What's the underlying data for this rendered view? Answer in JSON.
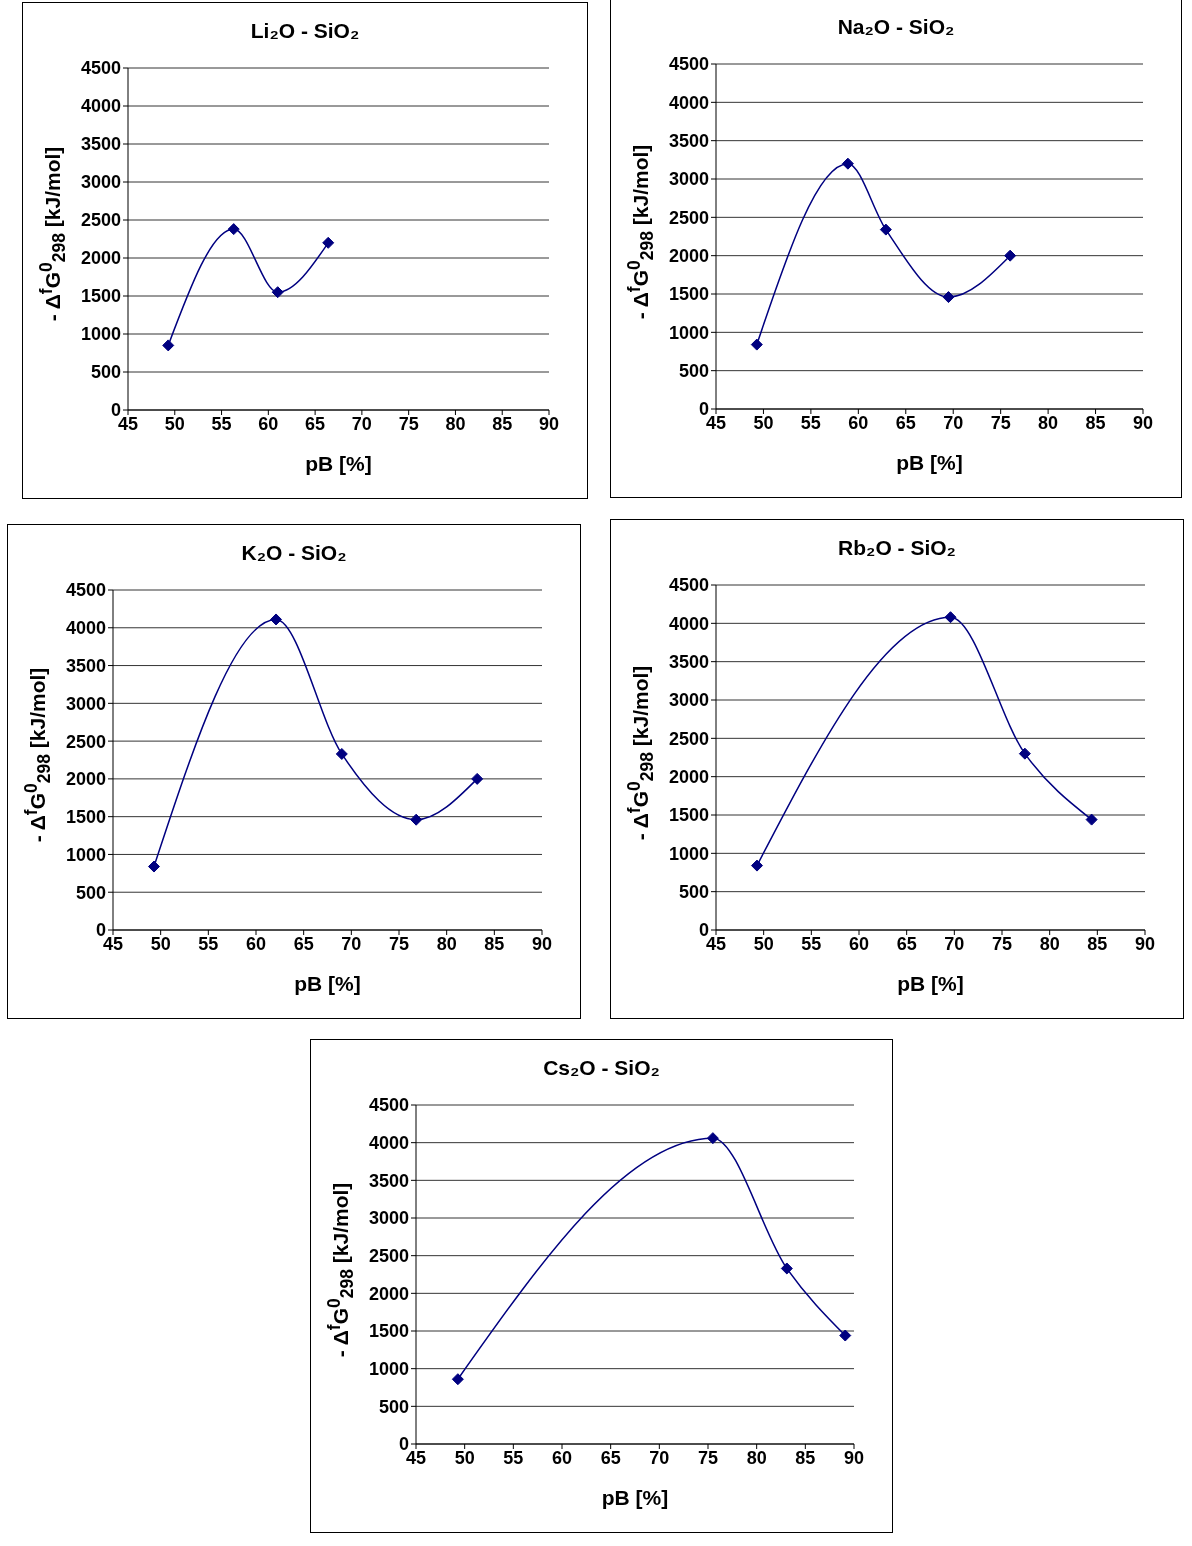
{
  "chart_data": [
    {
      "type": "line",
      "title": "Li₂O - SiO₂",
      "xlabel": "pB [%]",
      "ylabel": "- Δ$^{f}$G$^{0}$$_{298}$ [kJ/mol]",
      "x": [
        49.3,
        56.3,
        61,
        66.4
      ],
      "values": [
        850,
        2380,
        1550,
        2200
      ],
      "color": "#000080",
      "marker": "diamond",
      "xlim": [
        45,
        90
      ],
      "xticks": [
        45,
        50,
        55,
        60,
        65,
        70,
        75,
        80,
        85,
        90
      ],
      "ylim": [
        0,
        4500
      ],
      "yticks": [
        0,
        500,
        1000,
        1500,
        2000,
        2500,
        3000,
        3500,
        4000,
        4500
      ],
      "grid": "y"
    },
    {
      "type": "line",
      "title": "Na₂O - SiO₂",
      "xlabel": "pB [%]",
      "ylabel": "- Δ$^{f}$G$^{0}$$_{298}$ [kJ/mol]",
      "x": [
        49.3,
        58.9,
        62.9,
        69.5,
        76
      ],
      "values": [
        840,
        3200,
        2340,
        1460,
        2000
      ],
      "color": "#000080",
      "marker": "diamond",
      "xlim": [
        45,
        90
      ],
      "xticks": [
        45,
        50,
        55,
        60,
        65,
        70,
        75,
        80,
        85,
        90
      ],
      "ylim": [
        0,
        4500
      ],
      "yticks": [
        0,
        500,
        1000,
        1500,
        2000,
        2500,
        3000,
        3500,
        4000,
        4500
      ],
      "grid": "y"
    },
    {
      "type": "line",
      "title": "K₂O - SiO₂",
      "xlabel": "pB [%]",
      "ylabel": "- Δ$^{f}$G$^{0}$$_{298}$ [kJ/mol]",
      "x": [
        49.3,
        62.1,
        69,
        76.8,
        83.2
      ],
      "values": [
        840,
        4110,
        2330,
        1460,
        2000
      ],
      "color": "#000080",
      "marker": "diamond",
      "xlim": [
        45,
        90
      ],
      "xticks": [
        45,
        50,
        55,
        60,
        65,
        70,
        75,
        80,
        85,
        90
      ],
      "ylim": [
        0,
        4500
      ],
      "yticks": [
        0,
        500,
        1000,
        1500,
        2000,
        2500,
        3000,
        3500,
        4000,
        4500
      ],
      "grid": "y"
    },
    {
      "type": "line",
      "title": "Rb₂O - SiO₂",
      "xlabel": "pB [%]",
      "ylabel": "- Δ$^{f}$G$^{0}$$_{298}$ [kJ/mol]",
      "x": [
        49.3,
        69.6,
        77.4,
        84.4
      ],
      "values": [
        840,
        4080,
        2300,
        1440
      ],
      "color": "#000080",
      "marker": "diamond",
      "xlim": [
        45,
        90
      ],
      "xticks": [
        45,
        50,
        55,
        60,
        65,
        70,
        75,
        80,
        85,
        90
      ],
      "ylim": [
        0,
        4500
      ],
      "yticks": [
        0,
        500,
        1000,
        1500,
        2000,
        2500,
        3000,
        3500,
        4000,
        4500
      ],
      "grid": "y"
    },
    {
      "type": "line",
      "title": "Cs₂O - SiO₂",
      "xlabel": "pB [%]",
      "ylabel": "- Δ$^{f}$G$^{0}$$_{298}$ [kJ/mol]",
      "x": [
        49.3,
        75.5,
        83.1,
        89.1
      ],
      "values": [
        860,
        4060,
        2330,
        1440
      ],
      "color": "#000080",
      "marker": "diamond",
      "xlim": [
        45,
        90
      ],
      "xticks": [
        45,
        50,
        55,
        60,
        65,
        70,
        75,
        80,
        85,
        90
      ],
      "ylim": [
        0,
        4500
      ],
      "yticks": [
        0,
        500,
        1000,
        1500,
        2000,
        2500,
        3000,
        3500,
        4000,
        4500
      ],
      "grid": "y"
    }
  ]
}
